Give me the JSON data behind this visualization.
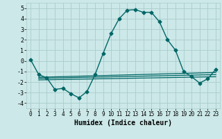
{
  "xlabel": "Humidex (Indice chaleur)",
  "background_color": "#cce8e8",
  "grid_color": "#aacccc",
  "line_color": "#006666",
  "xlim": [
    -0.5,
    23.5
  ],
  "ylim": [
    -4.5,
    5.5
  ],
  "yticks": [
    -4,
    -3,
    -2,
    -1,
    0,
    1,
    2,
    3,
    4,
    5
  ],
  "xticks": [
    0,
    1,
    2,
    3,
    4,
    5,
    6,
    7,
    8,
    9,
    10,
    11,
    12,
    13,
    14,
    15,
    16,
    17,
    18,
    19,
    20,
    21,
    22,
    23
  ],
  "main_series": {
    "x": [
      0,
      1,
      2,
      3,
      4,
      5,
      6,
      7,
      8,
      9,
      10,
      11,
      12,
      13,
      14,
      15,
      16,
      17,
      18,
      19,
      20,
      21,
      22,
      23
    ],
    "y": [
      0.1,
      -1.3,
      -1.6,
      -2.7,
      -2.6,
      -3.1,
      -3.5,
      -2.9,
      -1.3,
      0.7,
      2.6,
      4.0,
      4.8,
      4.85,
      4.6,
      4.6,
      3.7,
      2.0,
      1.0,
      -1.0,
      -1.5,
      -2.1,
      -1.7,
      -0.8
    ]
  },
  "flat_lines": [
    {
      "x": [
        1,
        23
      ],
      "y": [
        -1.55,
        -1.1
      ]
    },
    {
      "x": [
        1,
        23
      ],
      "y": [
        -1.65,
        -1.3
      ]
    },
    {
      "x": [
        1,
        23
      ],
      "y": [
        -1.8,
        -1.5
      ]
    }
  ]
}
